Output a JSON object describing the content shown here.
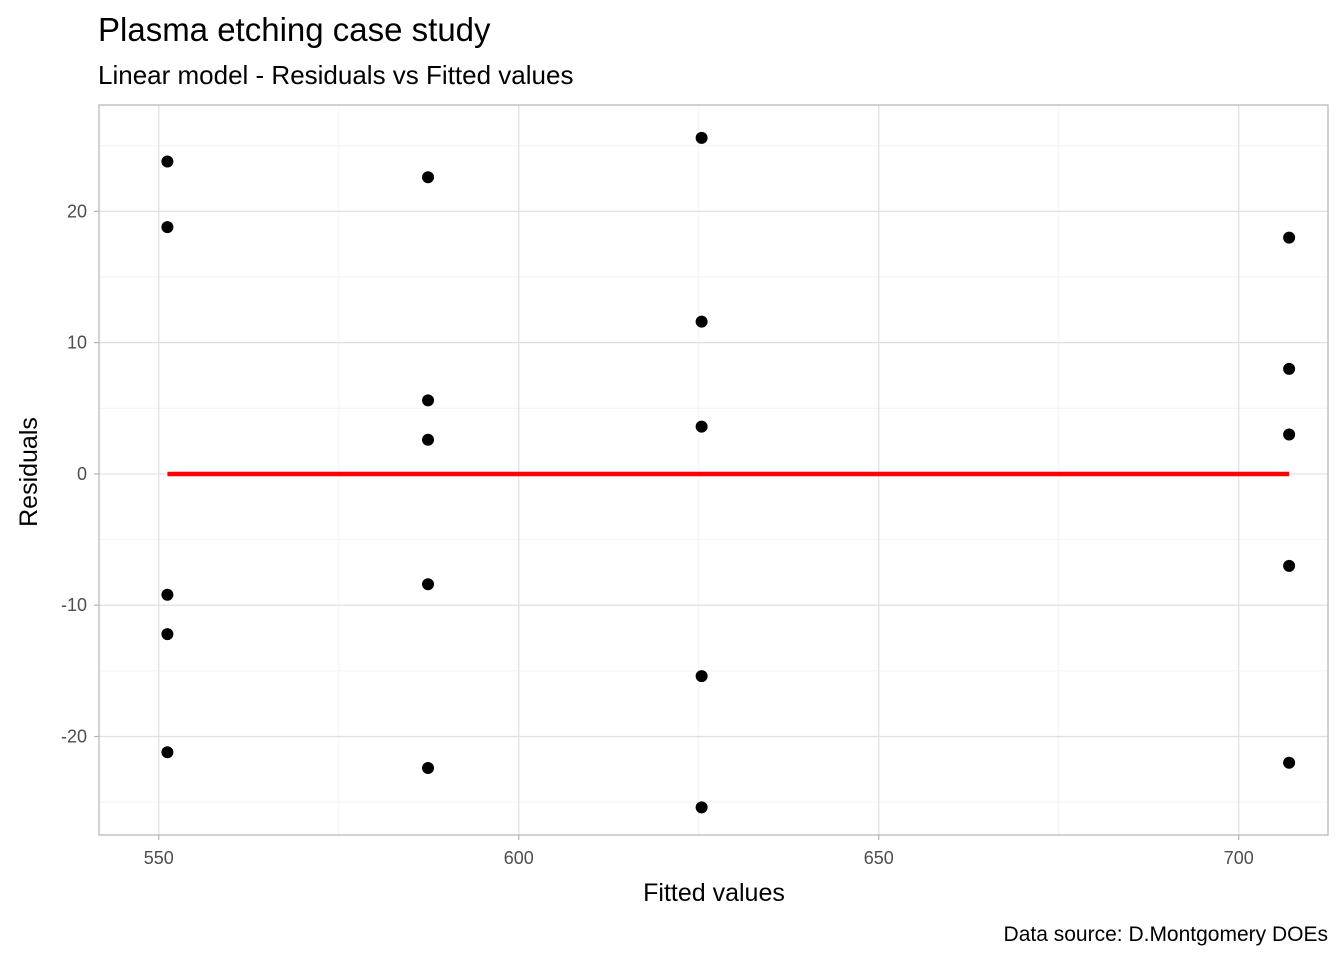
{
  "chart_data": {
    "type": "scatter",
    "title": "Plasma etching case study",
    "subtitle": "Linear model - Residuals vs Fitted values",
    "xlabel": "Fitted values",
    "ylabel": "Residuals",
    "caption": "Data source: D.Montgomery DOEs",
    "xlim": [
      541.7,
      712.4
    ],
    "ylim": [
      -27.5,
      28.1
    ],
    "xticks": [
      550,
      600,
      650,
      700
    ],
    "xtick_labels": [
      "550",
      "600",
      "650",
      "700"
    ],
    "yticks": [
      -20,
      -10,
      0,
      10,
      20
    ],
    "ytick_labels": [
      "-20",
      "-10",
      "0",
      "10",
      "20"
    ],
    "grid": true,
    "point_color": "#000000",
    "reference_line": {
      "y": 0,
      "x_from": 551.2,
      "x_to": 707.0,
      "color": "#ff0000"
    },
    "points": [
      {
        "x": 551.2,
        "y": 23.8
      },
      {
        "x": 551.2,
        "y": 18.8
      },
      {
        "x": 551.2,
        "y": -9.2
      },
      {
        "x": 551.2,
        "y": -12.2
      },
      {
        "x": 551.2,
        "y": -21.2
      },
      {
        "x": 587.4,
        "y": 22.6
      },
      {
        "x": 587.4,
        "y": 5.6
      },
      {
        "x": 587.4,
        "y": 2.6
      },
      {
        "x": 587.4,
        "y": -8.4
      },
      {
        "x": 587.4,
        "y": -22.4
      },
      {
        "x": 625.4,
        "y": 25.6
      },
      {
        "x": 625.4,
        "y": 11.6
      },
      {
        "x": 625.4,
        "y": 3.6
      },
      {
        "x": 625.4,
        "y": -15.4
      },
      {
        "x": 625.4,
        "y": -25.4
      },
      {
        "x": 707.0,
        "y": 18.0
      },
      {
        "x": 707.0,
        "y": 8.0
      },
      {
        "x": 707.0,
        "y": 3.0
      },
      {
        "x": 707.0,
        "y": -7.0
      },
      {
        "x": 707.0,
        "y": -22.0
      }
    ]
  }
}
